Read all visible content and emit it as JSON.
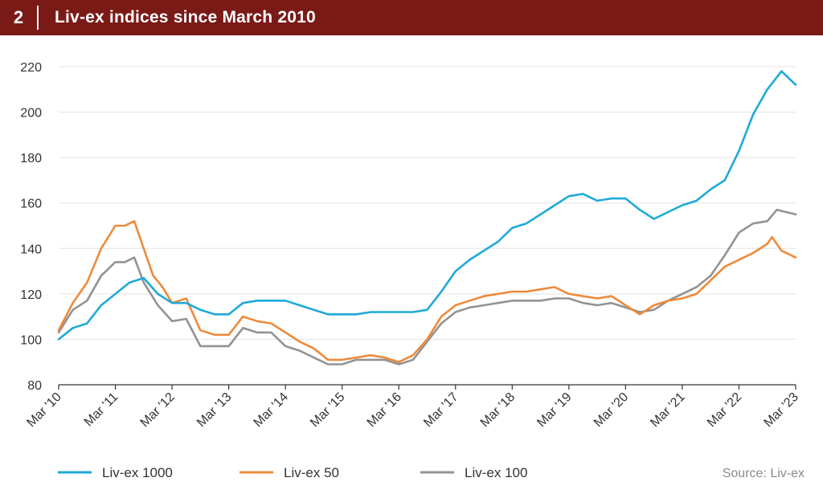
{
  "header": {
    "figure_number": "2",
    "title": "Liv-ex indices since March 2010"
  },
  "source": "Source: Liv-ex",
  "colors": {
    "header_bg": "#7a1a17",
    "livex1000": "#1fa9d9",
    "livex50": "#ee8a3a",
    "livex100": "#939393"
  },
  "chart_data": {
    "type": "line",
    "title": "Liv-ex indices since March 2010",
    "xlabel": "",
    "ylabel": "",
    "x_ticks": [
      "Mar '10",
      "Mar '11",
      "Mar '12",
      "Mar '13",
      "Mar '14",
      "Mar '15",
      "Mar '16",
      "Mar '17",
      "Mar '18",
      "Mar '19",
      "Mar '20",
      "Mar '21",
      "Mar '22",
      "Mar '23"
    ],
    "y_ticks": [
      80,
      100,
      120,
      140,
      160,
      180,
      200,
      220
    ],
    "ylim": [
      80,
      225
    ],
    "xlim": [
      0,
      156
    ],
    "x_unit": "months since March 2010",
    "grid": true,
    "legend_position": "bottom",
    "series": [
      {
        "name": "Liv-ex 1000",
        "color": "#1fa9d9",
        "x": [
          0,
          3,
          6,
          9,
          12,
          15,
          18,
          21,
          24,
          27,
          30,
          33,
          36,
          39,
          42,
          45,
          48,
          51,
          54,
          57,
          60,
          63,
          66,
          69,
          72,
          75,
          78,
          81,
          84,
          87,
          90,
          93,
          96,
          99,
          102,
          105,
          108,
          111,
          114,
          117,
          120,
          123,
          126,
          129,
          132,
          135,
          138,
          141,
          144,
          147,
          150,
          153,
          156
        ],
        "values": [
          100,
          105,
          107,
          115,
          120,
          125,
          127,
          120,
          116,
          116,
          113,
          111,
          111,
          116,
          117,
          117,
          117,
          115,
          113,
          111,
          111,
          111,
          112,
          112,
          112,
          112,
          113,
          121,
          130,
          135,
          139,
          143,
          149,
          151,
          155,
          159,
          163,
          164,
          161,
          162,
          162,
          157,
          153,
          156,
          159,
          161,
          166,
          170,
          183,
          199,
          210,
          218,
          212
        ]
      },
      {
        "name": "Liv-ex 50",
        "color": "#ee8a3a",
        "x": [
          0,
          3,
          6,
          9,
          12,
          14,
          16,
          18,
          20,
          22,
          24,
          27,
          30,
          33,
          36,
          39,
          42,
          45,
          48,
          51,
          54,
          57,
          60,
          63,
          66,
          69,
          72,
          75,
          78,
          81,
          84,
          87,
          90,
          93,
          96,
          99,
          102,
          105,
          108,
          111,
          114,
          117,
          120,
          123,
          126,
          129,
          132,
          135,
          138,
          141,
          144,
          147,
          150,
          151,
          153,
          156
        ],
        "values": [
          104,
          116,
          125,
          140,
          150,
          150,
          152,
          140,
          128,
          123,
          116,
          118,
          104,
          102,
          102,
          110,
          108,
          107,
          103,
          99,
          96,
          91,
          91,
          92,
          93,
          92,
          90,
          93,
          100,
          110,
          115,
          117,
          119,
          120,
          121,
          121,
          122,
          123,
          120,
          119,
          118,
          119,
          115,
          111,
          115,
          117,
          118,
          120,
          126,
          132,
          135,
          138,
          142,
          145,
          139,
          136
        ]
      },
      {
        "name": "Liv-ex 100",
        "color": "#939393",
        "x": [
          0,
          3,
          6,
          9,
          12,
          14,
          16,
          18,
          21,
          24,
          27,
          30,
          33,
          36,
          39,
          42,
          45,
          48,
          51,
          54,
          57,
          60,
          63,
          66,
          69,
          72,
          75,
          78,
          81,
          84,
          87,
          90,
          93,
          96,
          99,
          102,
          105,
          108,
          111,
          114,
          117,
          120,
          123,
          126,
          129,
          132,
          135,
          138,
          141,
          144,
          147,
          150,
          152,
          154,
          156
        ],
        "values": [
          103,
          113,
          117,
          128,
          134,
          134,
          136,
          125,
          115,
          108,
          109,
          97,
          97,
          97,
          105,
          103,
          103,
          97,
          95,
          92,
          89,
          89,
          91,
          91,
          91,
          89,
          91,
          99,
          107,
          112,
          114,
          115,
          116,
          117,
          117,
          117,
          118,
          118,
          116,
          115,
          116,
          114,
          112,
          113,
          117,
          120,
          123,
          128,
          137,
          147,
          151,
          152,
          157,
          156,
          155
        ]
      }
    ]
  }
}
